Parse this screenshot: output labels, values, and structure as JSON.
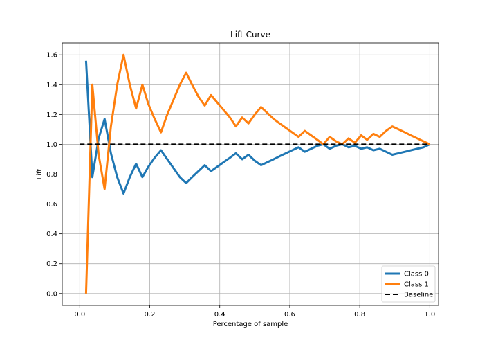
{
  "chart_data": {
    "type": "line",
    "title": "Lift Curve",
    "xlabel": "Percentage of sample",
    "ylabel": "Lift",
    "xlim": [
      -0.05,
      1.025
    ],
    "ylim": [
      -0.08,
      1.68
    ],
    "xticks": [
      0.0,
      0.2,
      0.4,
      0.6,
      0.8,
      1.0
    ],
    "xtick_labels": [
      "0.0",
      "0.2",
      "0.4",
      "0.6",
      "0.8",
      "1.0"
    ],
    "yticks": [
      0.0,
      0.2,
      0.4,
      0.6,
      0.8,
      1.0,
      1.2,
      1.4,
      1.6
    ],
    "ytick_labels": [
      "0.0",
      "0.2",
      "0.4",
      "0.6",
      "0.8",
      "1.0",
      "1.2",
      "1.4",
      "1.6"
    ],
    "grid": true,
    "legend_position": "bottom-right",
    "series": [
      {
        "name": "Class 0",
        "color": "#1f77b4",
        "x": [
          0.018,
          0.036,
          0.054,
          0.071,
          0.089,
          0.107,
          0.125,
          0.143,
          0.161,
          0.179,
          0.196,
          0.214,
          0.232,
          0.25,
          0.268,
          0.286,
          0.304,
          0.321,
          0.339,
          0.357,
          0.375,
          0.393,
          0.411,
          0.429,
          0.446,
          0.464,
          0.482,
          0.5,
          0.518,
          0.536,
          0.554,
          0.571,
          0.589,
          0.607,
          0.625,
          0.643,
          0.661,
          0.679,
          0.696,
          0.714,
          0.732,
          0.75,
          0.768,
          0.786,
          0.804,
          0.821,
          0.839,
          0.857,
          0.875,
          0.893,
          0.911,
          0.929,
          0.946,
          0.964,
          0.982,
          1.0
        ],
        "values": [
          1.56,
          0.78,
          1.04,
          1.17,
          0.94,
          0.78,
          0.67,
          0.78,
          0.87,
          0.78,
          0.85,
          0.91,
          0.96,
          0.9,
          0.84,
          0.78,
          0.74,
          0.78,
          0.82,
          0.86,
          0.82,
          0.85,
          0.88,
          0.91,
          0.94,
          0.9,
          0.93,
          0.89,
          0.86,
          0.88,
          0.9,
          0.92,
          0.94,
          0.96,
          0.98,
          0.95,
          0.97,
          0.99,
          1.0,
          0.97,
          0.99,
          1.0,
          0.98,
          0.99,
          0.97,
          0.98,
          0.96,
          0.97,
          0.95,
          0.93,
          0.94,
          0.95,
          0.96,
          0.97,
          0.98,
          1.0
        ]
      },
      {
        "name": "Class 1",
        "color": "#ff7f0e",
        "x": [
          0.018,
          0.036,
          0.054,
          0.071,
          0.089,
          0.107,
          0.125,
          0.143,
          0.161,
          0.179,
          0.196,
          0.214,
          0.232,
          0.25,
          0.268,
          0.286,
          0.304,
          0.321,
          0.339,
          0.357,
          0.375,
          0.393,
          0.411,
          0.429,
          0.446,
          0.464,
          0.482,
          0.5,
          0.518,
          0.536,
          0.554,
          0.571,
          0.589,
          0.607,
          0.625,
          0.643,
          0.661,
          0.679,
          0.696,
          0.714,
          0.732,
          0.75,
          0.768,
          0.786,
          0.804,
          0.821,
          0.839,
          0.857,
          0.875,
          0.893,
          0.911,
          0.929,
          0.946,
          0.964,
          0.982,
          1.0
        ],
        "values": [
          0.0,
          1.4,
          0.93,
          0.7,
          1.12,
          1.4,
          1.6,
          1.4,
          1.24,
          1.4,
          1.27,
          1.17,
          1.08,
          1.2,
          1.3,
          1.4,
          1.48,
          1.4,
          1.32,
          1.26,
          1.33,
          1.28,
          1.23,
          1.18,
          1.12,
          1.18,
          1.14,
          1.2,
          1.25,
          1.21,
          1.17,
          1.14,
          1.11,
          1.08,
          1.05,
          1.09,
          1.06,
          1.03,
          1.0,
          1.05,
          1.02,
          1.0,
          1.04,
          1.01,
          1.06,
          1.03,
          1.07,
          1.05,
          1.09,
          1.12,
          1.1,
          1.08,
          1.06,
          1.04,
          1.02,
          1.0
        ]
      },
      {
        "name": "Baseline",
        "color": "#000000",
        "dashed": true,
        "x": [
          0.0,
          1.0
        ],
        "values": [
          1.0,
          1.0
        ]
      }
    ]
  }
}
